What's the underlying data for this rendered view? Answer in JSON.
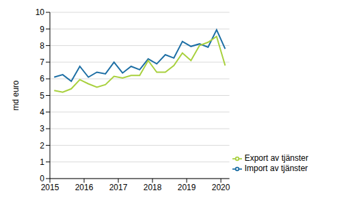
{
  "chart_data": {
    "type": "line",
    "y_label": "md euro",
    "x": [
      2015.125,
      2015.375,
      2015.625,
      2015.875,
      2016.125,
      2016.375,
      2016.625,
      2016.875,
      2017.125,
      2017.375,
      2017.625,
      2017.875,
      2018.125,
      2018.375,
      2018.625,
      2018.875,
      2019.125,
      2019.375,
      2019.625,
      2019.875,
      2020.125
    ],
    "series": [
      {
        "name": "Import av tjänster",
        "color": "#1c6ea4",
        "values": [
          6.1,
          6.25,
          5.85,
          6.75,
          6.1,
          6.4,
          6.3,
          7.0,
          6.35,
          6.75,
          6.55,
          7.2,
          6.9,
          7.45,
          7.25,
          8.25,
          7.95,
          8.1,
          7.9,
          8.95,
          7.8
        ]
      },
      {
        "name": "Export av tjänster",
        "color": "#a8d03d",
        "values": [
          5.3,
          5.2,
          5.4,
          5.95,
          5.7,
          5.5,
          5.65,
          6.15,
          6.05,
          6.2,
          6.2,
          7.1,
          6.4,
          6.4,
          6.8,
          7.55,
          7.1,
          8.0,
          8.2,
          8.55,
          6.8
        ]
      }
    ],
    "xlim": [
      2015,
      2020.25
    ],
    "xticks": [
      2015,
      2016,
      2017,
      2018,
      2019,
      2020
    ],
    "ylim": [
      0,
      10
    ],
    "yticks": [
      0,
      1,
      2,
      3,
      4,
      5,
      6,
      7,
      8,
      9,
      10
    ],
    "grid": true,
    "legend": "bottom-right"
  }
}
